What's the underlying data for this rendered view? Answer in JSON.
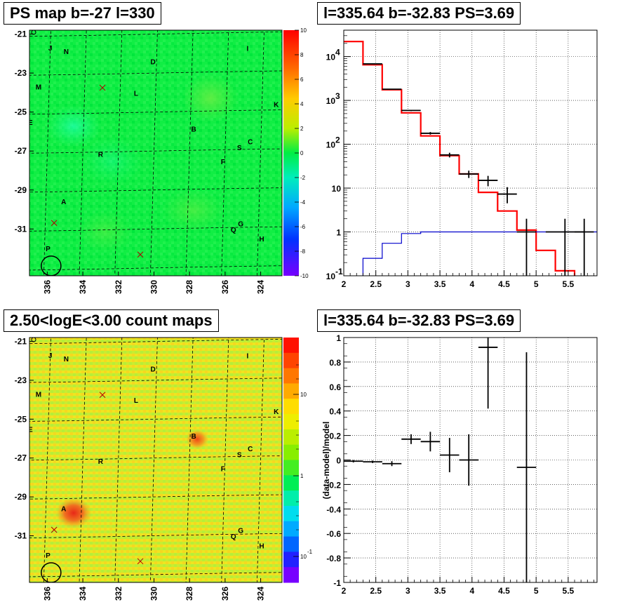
{
  "titles": {
    "map_top": "PS map b=-27 l=330",
    "spectrum": "l=335.64 b=-32.83 PS=3.69",
    "map_bottom": "2.50<logE<3.00 count maps",
    "residual": "l=335.64 b=-32.83 PS=3.69"
  },
  "maps": {
    "b_ticks": [
      "-21",
      "-23",
      "-25",
      "-27",
      "-29",
      "-31"
    ],
    "l_ticks": [
      "336",
      "334",
      "332",
      "330",
      "328",
      "326",
      "324"
    ],
    "b_range": [
      -20.8,
      -33.4
    ],
    "l_range": [
      337.0,
      322.8
    ],
    "top_colorbar_ticks": [
      "10",
      "8",
      "6",
      "4",
      "2",
      "0",
      "-2",
      "-4",
      "-6",
      "-8",
      "-10"
    ],
    "bottom_colorbar_ticks": [
      "10",
      "1",
      "10"
    ],
    "bottom_colorbar_exp": "-1",
    "sources": [
      {
        "label": "J",
        "l": 336.0,
        "b": -21.6
      },
      {
        "label": "N",
        "l": 335.1,
        "b": -21.8
      },
      {
        "label": "I",
        "l": 324.9,
        "b": -21.8
      },
      {
        "label": "D",
        "l": 330.2,
        "b": -22.4
      },
      {
        "label": "M",
        "l": 336.6,
        "b": -23.6
      },
      {
        "label": "L",
        "l": 331.1,
        "b": -24.0
      },
      {
        "label": "K",
        "l": 323.2,
        "b": -24.7
      },
      {
        "label": "E",
        "l": 337.0,
        "b": -25.4
      },
      {
        "label": "B",
        "l": 327.8,
        "b": -25.9
      },
      {
        "label": "C",
        "l": 324.6,
        "b": -26.6
      },
      {
        "label": "S",
        "l": 325.2,
        "b": -26.9
      },
      {
        "label": "R",
        "l": 333.0,
        "b": -27.1
      },
      {
        "label": "F",
        "l": 326.1,
        "b": -27.6
      },
      {
        "label": "A",
        "l": 335.0,
        "b": -29.5
      },
      {
        "label": "G",
        "l": 325.0,
        "b": -30.8
      },
      {
        "label": "Q",
        "l": 325.4,
        "b": -31.1
      },
      {
        "label": "H",
        "l": 323.8,
        "b": -31.6
      },
      {
        "label": "P",
        "l": 335.8,
        "b": -31.9
      }
    ],
    "crosses": [
      {
        "l": 333.0,
        "b": -23.7
      },
      {
        "l": 335.5,
        "b": -30.6
      },
      {
        "l": 330.6,
        "b": -32.3
      }
    ],
    "circle": {
      "l": 335.6,
      "b": -32.8
    }
  },
  "chart_data": [
    {
      "type": "line",
      "x_ticks": [
        "2",
        "2.5",
        "3",
        "3.5",
        "4",
        "4.5",
        "5",
        "5.5"
      ],
      "xlim": [
        2.0,
        5.95
      ],
      "y_log": true,
      "ylim": [
        0.1,
        40000
      ],
      "y_ticks": [
        {
          "v": 10000,
          "t": "10",
          "e": "4"
        },
        {
          "v": 1000,
          "t": "10",
          "e": "3"
        },
        {
          "v": 100,
          "t": "10",
          "e": "2"
        },
        {
          "v": 10,
          "t": "10",
          "e": ""
        },
        {
          "v": 1,
          "t": "1",
          "e": ""
        },
        {
          "v": 0.1,
          "t": "10",
          "e": "-1"
        }
      ],
      "grid": true,
      "series": [
        {
          "color": "#ff0000",
          "style": "step",
          "edges": [
            2.0,
            2.3,
            2.6,
            2.9,
            3.2,
            3.5,
            3.8,
            4.1,
            4.4,
            4.7,
            5.0,
            5.3,
            5.6,
            5.95
          ],
          "values": [
            22000,
            6500,
            1750,
            520,
            155,
            55,
            21,
            8,
            3,
            1.1,
            0.38,
            0.13,
            0.045
          ]
        },
        {
          "color": "#0000cc",
          "style": "step",
          "edges": [
            2.0,
            2.3,
            2.6,
            2.9,
            3.2,
            3.5,
            3.8,
            4.1,
            4.4,
            4.7,
            5.0,
            5.3,
            5.6,
            5.95
          ],
          "values": [
            0.05,
            0.25,
            0.55,
            0.92,
            1.0,
            1.0,
            1.0,
            1.0,
            1.0,
            1.0,
            1.0,
            1.0,
            1.0
          ]
        },
        {
          "color": "#000000",
          "style": "points",
          "points": [
            {
              "x": 2.45,
              "y": 6800,
              "xerr": 0.15,
              "ylo": 6700,
              "yhi": 6900
            },
            {
              "x": 2.75,
              "y": 1800,
              "xerr": 0.15,
              "ylo": 1760,
              "yhi": 1840
            },
            {
              "x": 3.05,
              "y": 590,
              "xerr": 0.15,
              "ylo": 570,
              "yhi": 610
            },
            {
              "x": 3.35,
              "y": 178,
              "xerr": 0.15,
              "ylo": 166,
              "yhi": 190
            },
            {
              "x": 3.65,
              "y": 57,
              "xerr": 0.15,
              "ylo": 50,
              "yhi": 64
            },
            {
              "x": 3.95,
              "y": 21,
              "xerr": 0.15,
              "ylo": 17,
              "yhi": 25
            },
            {
              "x": 4.25,
              "y": 15,
              "xerr": 0.15,
              "ylo": 11,
              "yhi": 19
            },
            {
              "x": 4.55,
              "y": 7.3,
              "xerr": 0.15,
              "ylo": 4.5,
              "yhi": 10.5
            },
            {
              "x": 4.85,
              "y": 1,
              "xerr": 0.15,
              "ylo": 0.1,
              "yhi": 2.0
            },
            {
              "x": 5.45,
              "y": 1,
              "xerr": 0.3,
              "ylo": 0.1,
              "yhi": 2.0
            },
            {
              "x": 5.75,
              "y": 1,
              "xerr": 0.15,
              "ylo": 0.1,
              "yhi": 2.0
            }
          ]
        }
      ]
    },
    {
      "type": "scatter",
      "ylabel": "(data-model)/model",
      "x_ticks": [
        "2",
        "2.5",
        "3",
        "3.5",
        "4",
        "4.5",
        "5",
        "5.5"
      ],
      "xlim": [
        2.0,
        5.95
      ],
      "ylim": [
        -1.0,
        1.0
      ],
      "y_ticks": [
        "1",
        "0.8",
        "0.6",
        "0.4",
        "0.2",
        "0",
        "-0.2",
        "-0.4",
        "-0.6",
        "-0.8",
        "-1"
      ],
      "grid": true,
      "points": [
        {
          "x": 2.15,
          "y": -0.01,
          "xerr": 0.15,
          "yerr": 0.01
        },
        {
          "x": 2.45,
          "y": -0.015,
          "xerr": 0.15,
          "yerr": 0.01
        },
        {
          "x": 2.75,
          "y": -0.03,
          "xerr": 0.15,
          "yerr": 0.02
        },
        {
          "x": 3.05,
          "y": 0.17,
          "xerr": 0.15,
          "yerr": 0.04
        },
        {
          "x": 3.35,
          "y": 0.15,
          "xerr": 0.15,
          "yerr": 0.08
        },
        {
          "x": 3.65,
          "y": 0.04,
          "xerr": 0.15,
          "yerr": 0.14
        },
        {
          "x": 3.95,
          "y": 0.0,
          "xerr": 0.15,
          "yerr": 0.21
        },
        {
          "x": 4.25,
          "y": 0.92,
          "xerr": 0.15,
          "yerr": 0.5
        },
        {
          "x": 4.85,
          "y": -0.06,
          "xerr": 0.15,
          "yerr": 0.94
        }
      ]
    }
  ],
  "colors": {
    "map_green": "#00ee44",
    "count_yellow": "#eeee22",
    "model": "#ff0000",
    "background_model": "#0000cc"
  }
}
